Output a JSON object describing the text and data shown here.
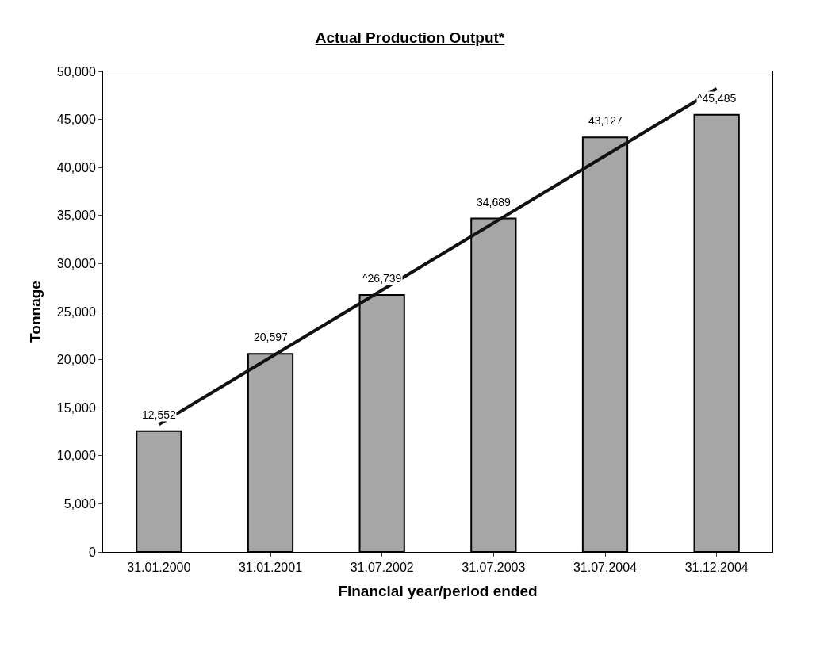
{
  "chart_data": {
    "type": "bar",
    "title": "Actual Production Output*",
    "xlabel": "Financial year/period ended",
    "ylabel": "Tonnage",
    "categories": [
      "31.01.2000",
      "31.01.2001",
      "31.07.2002",
      "31.07.2003",
      "31.07.2004",
      "31.12.2004"
    ],
    "series": [
      {
        "color": "#a6a6a6",
        "values": [
          12552,
          20597,
          26739,
          34689,
          43127,
          45485
        ],
        "value_labels": [
          "12,552",
          "20,597",
          "^26,739",
          "34,689",
          "43,127",
          "^45,485"
        ]
      },
      {
        "type": "line",
        "color": "#111111",
        "x": [
          "31.01.2000",
          "31.12.2004"
        ],
        "values": [
          13250,
          48200
        ]
      }
    ],
    "ylim": [
      0,
      50000
    ],
    "yticks": [
      {
        "value": 0,
        "label": "0"
      },
      {
        "value": 5000,
        "label": "5,000"
      },
      {
        "value": 10000,
        "label": "10,000"
      },
      {
        "value": 15000,
        "label": "15,000"
      },
      {
        "value": 20000,
        "label": "20,000"
      },
      {
        "value": 25000,
        "label": "25,000"
      },
      {
        "value": 30000,
        "label": "30,000"
      },
      {
        "value": 35000,
        "label": "35,000"
      },
      {
        "value": 40000,
        "label": "40,000"
      },
      {
        "value": 45000,
        "label": "45,000"
      },
      {
        "value": 50000,
        "label": "50,000"
      }
    ]
  }
}
